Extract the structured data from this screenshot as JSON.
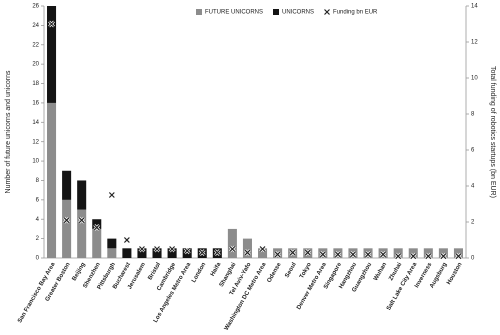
{
  "chart_data": {
    "type": "bar",
    "categories": [
      "San Francisco Bay Area",
      "Greater Boston",
      "Beijing",
      "Shenzhen",
      "Pittsburgh",
      "Bucharest",
      "Jerusalem",
      "Bristol",
      "Cambridge",
      "Los Angeles Metro Area",
      "London",
      "Haifa",
      "Shanghai",
      "Tel Aviv-Yafo",
      "Washington DC Metro Area",
      "Odense",
      "Seoul",
      "Tokyo",
      "Denver Metro Area",
      "Singapore",
      "Hangzhou",
      "Guangzhou",
      "Wuhan",
      "Zhuhai",
      "Salt Lake City Area",
      "Inverness",
      "Augsburg",
      "Houston"
    ],
    "series": [
      {
        "name": "FUTURE UNICORNS",
        "color": "#8c8c8c",
        "values": [
          16,
          6,
          5,
          3,
          1,
          0,
          0,
          0,
          0,
          0,
          0,
          0,
          3,
          2,
          1,
          1,
          1,
          1,
          1,
          1,
          1,
          1,
          1,
          1,
          1,
          1,
          1,
          1
        ]
      },
      {
        "name": "UNICORNS",
        "color": "#141414",
        "values": [
          10,
          3,
          3,
          1,
          1,
          1,
          1,
          1,
          1,
          1,
          1,
          1,
          0,
          0,
          0,
          0,
          0,
          0,
          0,
          0,
          0,
          0,
          0,
          0,
          0,
          0,
          0,
          0
        ]
      },
      {
        "name": "Funding bn EUR",
        "color": "#222222",
        "type": "scatter",
        "axis": "y2",
        "values": [
          13,
          2.1,
          2.1,
          1.7,
          3.5,
          1,
          0.5,
          0.5,
          0.5,
          0.4,
          0.3,
          0.3,
          0.5,
          0.3,
          0.5,
          0.2,
          0.3,
          0.3,
          0.2,
          0.2,
          0.2,
          0.2,
          0.2,
          0.1,
          0.1,
          0.1,
          0.1,
          0.1
        ]
      }
    ],
    "ylabel": "Number of future unicorns and unicorns",
    "y2label": "Total funding of robotics startups (bn EUR)",
    "ylim": [
      0,
      26
    ],
    "yticks": [
      0,
      2,
      4,
      6,
      8,
      10,
      12,
      14,
      16,
      18,
      20,
      22,
      24,
      26
    ],
    "y2lim": [
      0,
      14
    ],
    "y2ticks": [
      0,
      2,
      4,
      6,
      8,
      10,
      12,
      14
    ],
    "legend": "top"
  }
}
